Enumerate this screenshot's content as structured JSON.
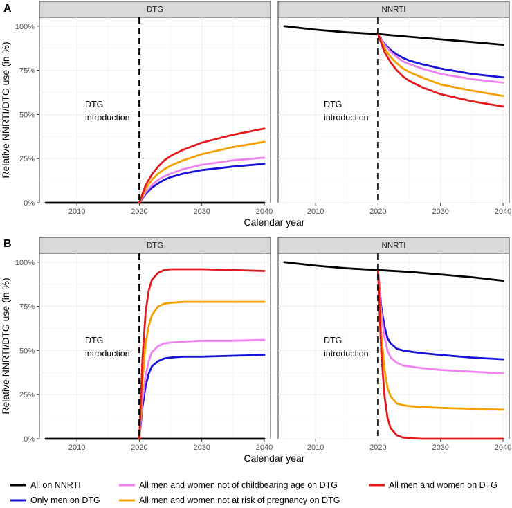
{
  "chart_data": {
    "type": "line",
    "xlabel": "Calendar year",
    "ylabel": "Relative NNRTI/DTG use (in %)",
    "x_ticks": [
      2010,
      2020,
      2030,
      2040
    ],
    "y_ticks": [
      "0%",
      "25%",
      "50%",
      "75%",
      "100%"
    ],
    "xlim": [
      2004,
      2041
    ],
    "ylim": [
      0,
      105
    ],
    "annotation": {
      "line1": "DTG",
      "line2": "introduction",
      "x": 2020
    },
    "legend": [
      {
        "id": "nnrti",
        "label": "All on NNRTI",
        "color": "#000000"
      },
      {
        "id": "men",
        "label": "Only men on DTG",
        "color": "#1a12d6"
      },
      {
        "id": "notchild",
        "label": "All men and women not of childbearing age on DTG",
        "color": "#ee82ee"
      },
      {
        "id": "notrisk",
        "label": "All men and women not at risk of pregnancy on DTG",
        "color": "#f5a000"
      },
      {
        "id": "all",
        "label": "All men and women on DTG",
        "color": "#e31a1c"
      }
    ],
    "rows": [
      {
        "tag": "A",
        "panels": [
          {
            "strip": "DTG",
            "series": [
              {
                "id": "nnrti",
                "x": [
                  2005,
                  2040
                ],
                "y": [
                  0,
                  0
                ]
              },
              {
                "id": "men",
                "x": [
                  2020,
                  2021,
                  2022,
                  2023,
                  2024,
                  2025,
                  2027,
                  2030,
                  2035,
                  2040
                ],
                "y": [
                  0,
                  5,
                  8.5,
                  11,
                  13,
                  14.5,
                  16.5,
                  18.5,
                  20.5,
                  22
                ]
              },
              {
                "id": "notchild",
                "x": [
                  2020,
                  2021,
                  2022,
                  2023,
                  2024,
                  2025,
                  2027,
                  2030,
                  2035,
                  2040
                ],
                "y": [
                  0,
                  6,
                  10,
                  13,
                  15,
                  16.5,
                  19,
                  21.5,
                  24,
                  25.5
                ]
              },
              {
                "id": "notrisk",
                "x": [
                  2020,
                  2021,
                  2022,
                  2023,
                  2024,
                  2025,
                  2027,
                  2030,
                  2035,
                  2040
                ],
                "y": [
                  0,
                  8,
                  13,
                  16.5,
                  19,
                  21,
                  24,
                  27.5,
                  31.5,
                  34.5
                ]
              },
              {
                "id": "all",
                "x": [
                  2020,
                  2021,
                  2022,
                  2023,
                  2024,
                  2025,
                  2027,
                  2030,
                  2035,
                  2040
                ],
                "y": [
                  0,
                  10,
                  16,
                  20.5,
                  24,
                  26.5,
                  30,
                  34,
                  38.5,
                  42
                ]
              }
            ]
          },
          {
            "strip": "NNRTI",
            "series": [
              {
                "id": "nnrti",
                "x": [
                  2005,
                  2010,
                  2015,
                  2020,
                  2025,
                  2030,
                  2035,
                  2040
                ],
                "y": [
                  100,
                  98,
                  96.5,
                  95.5,
                  94,
                  92.5,
                  91,
                  89.5
                ]
              },
              {
                "id": "men",
                "x": [
                  2020,
                  2021,
                  2022,
                  2023,
                  2024,
                  2025,
                  2027,
                  2030,
                  2035,
                  2040
                ],
                "y": [
                  95.5,
                  90,
                  86.5,
                  84,
                  82,
                  80.5,
                  78.5,
                  76,
                  73,
                  71
                ]
              },
              {
                "id": "notchild",
                "x": [
                  2020,
                  2021,
                  2022,
                  2023,
                  2024,
                  2025,
                  2027,
                  2030,
                  2035,
                  2040
                ],
                "y": [
                  95.5,
                  89.5,
                  85.5,
                  82.5,
                  80,
                  78.5,
                  76,
                  73,
                  70,
                  68
                ]
              },
              {
                "id": "notrisk",
                "x": [
                  2020,
                  2021,
                  2022,
                  2023,
                  2024,
                  2025,
                  2027,
                  2030,
                  2035,
                  2040
                ],
                "y": [
                  95.5,
                  87.5,
                  82.5,
                  79,
                  76,
                  74,
                  71,
                  67,
                  63.5,
                  60.5
                ]
              },
              {
                "id": "all",
                "x": [
                  2020,
                  2021,
                  2022,
                  2023,
                  2024,
                  2025,
                  2027,
                  2030,
                  2035,
                  2040
                ],
                "y": [
                  95.5,
                  85.5,
                  79.5,
                  75,
                  71.5,
                  69,
                  65.5,
                  61.5,
                  57.5,
                  54.5
                ]
              }
            ]
          }
        ]
      },
      {
        "tag": "B",
        "panels": [
          {
            "strip": "DTG",
            "series": [
              {
                "id": "nnrti",
                "x": [
                  2005,
                  2040
                ],
                "y": [
                  0,
                  0
                ]
              },
              {
                "id": "men",
                "x": [
                  2020,
                  2020.5,
                  2021,
                  2021.5,
                  2022,
                  2023,
                  2024,
                  2025,
                  2027,
                  2030,
                  2035,
                  2040
                ],
                "y": [
                  0,
                  18,
                  30,
                  37,
                  41,
                  44,
                  45.5,
                  46,
                  46.5,
                  46.5,
                  47,
                  47.5
                ]
              },
              {
                "id": "notchild",
                "x": [
                  2020,
                  2020.5,
                  2021,
                  2021.5,
                  2022,
                  2023,
                  2024,
                  2025,
                  2027,
                  2030,
                  2035,
                  2040
                ],
                "y": [
                  0,
                  22,
                  36,
                  44,
                  49,
                  52.5,
                  54,
                  54.5,
                  55,
                  55.5,
                  55.5,
                  56
                ]
              },
              {
                "id": "notrisk",
                "x": [
                  2020,
                  2020.5,
                  2021,
                  2021.5,
                  2022,
                  2023,
                  2024,
                  2025,
                  2027,
                  2030,
                  2035,
                  2040
                ],
                "y": [
                  0,
                  33,
                  54,
                  64,
                  70,
                  75,
                  76.5,
                  77,
                  77.5,
                  77.5,
                  77.5,
                  77.5
                ]
              },
              {
                "id": "all",
                "x": [
                  2020,
                  2020.5,
                  2021,
                  2021.5,
                  2022,
                  2023,
                  2024,
                  2025,
                  2027,
                  2030,
                  2035,
                  2040
                ],
                "y": [
                  0,
                  45,
                  72,
                  84,
                  90,
                  94,
                  95.5,
                  96,
                  96,
                  96,
                  95.5,
                  95
                ]
              }
            ]
          },
          {
            "strip": "NNRTI",
            "series": [
              {
                "id": "nnrti",
                "x": [
                  2005,
                  2010,
                  2015,
                  2020,
                  2025,
                  2030,
                  2035,
                  2040
                ],
                "y": [
                  100,
                  98,
                  96.5,
                  95.5,
                  94.5,
                  93,
                  91.5,
                  89.5
                ]
              },
              {
                "id": "men",
                "x": [
                  2020,
                  2020.5,
                  2021,
                  2021.5,
                  2022,
                  2023,
                  2024,
                  2025,
                  2027,
                  2030,
                  2035,
                  2040
                ],
                "y": [
                  95,
                  75,
                  64,
                  57,
                  54,
                  51,
                  50,
                  49.5,
                  48.5,
                  47.5,
                  46,
                  45
                ]
              },
              {
                "id": "notchild",
                "x": [
                  2020,
                  2020.5,
                  2021,
                  2021.5,
                  2022,
                  2023,
                  2024,
                  2025,
                  2027,
                  2030,
                  2035,
                  2040
                ],
                "y": [
                  95,
                  72,
                  58,
                  50,
                  46,
                  43,
                  41.5,
                  41,
                  40,
                  39,
                  38,
                  37
                ]
              },
              {
                "id": "notrisk",
                "x": [
                  2020,
                  2020.5,
                  2021,
                  2021.5,
                  2022,
                  2023,
                  2024,
                  2025,
                  2027,
                  2030,
                  2035,
                  2040
                ],
                "y": [
                  95,
                  60,
                  40,
                  29,
                  24,
                  20,
                  19,
                  18.5,
                  18,
                  17.5,
                  17,
                  16.5
                ]
              },
              {
                "id": "all",
                "x": [
                  2020,
                  2020.5,
                  2021,
                  2021.5,
                  2022,
                  2023,
                  2024,
                  2025,
                  2027,
                  2030,
                  2035,
                  2040
                ],
                "y": [
                  95,
                  50,
                  25,
                  12,
                  6,
                  2,
                  0.7,
                  0.3,
                  0,
                  0,
                  0,
                  0
                ]
              }
            ]
          }
        ]
      }
    ]
  }
}
